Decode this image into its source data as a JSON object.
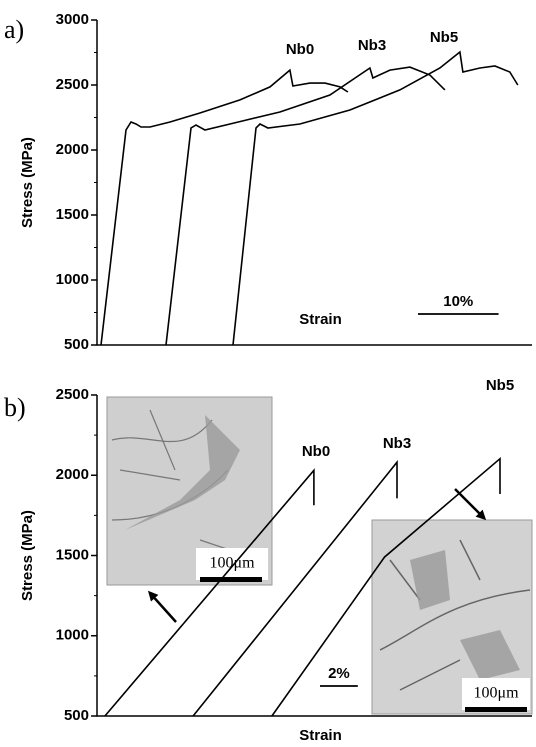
{
  "chart_data": [
    {
      "type": "line",
      "panel_label": "a)",
      "xlabel": "Strain",
      "ylabel": "Stress (MPa)",
      "xlim": [
        0,
        54
      ],
      "ylim": [
        500,
        3000
      ],
      "yticks": [
        500,
        1000,
        1500,
        2000,
        2500,
        3000
      ],
      "scale_bar": {
        "value": 10,
        "label": "10%"
      },
      "series": [
        {
          "name": "Nb0",
          "color": "#000000",
          "x": [
            0.5,
            3.6,
            4.22,
            4.84,
            5.46,
            6.58,
            9.06,
            12.78,
            17.75,
            21.47,
            23.95,
            24.32,
            26.43,
            28.3,
            30.16,
            31.15
          ],
          "values": [
            500,
            2154,
            2215,
            2200,
            2177,
            2177,
            2215,
            2285,
            2385,
            2485,
            2615,
            2492,
            2515,
            2515,
            2485,
            2446
          ]
        },
        {
          "name": "Nb3",
          "color": "#000000",
          "x": [
            8.56,
            11.67,
            12.29,
            13.4,
            16.51,
            22.71,
            28.91,
            33.88,
            34.25,
            36.36,
            38.84,
            41.32,
            43.19
          ],
          "values": [
            500,
            2169,
            2192,
            2154,
            2200,
            2292,
            2423,
            2631,
            2554,
            2615,
            2638,
            2577,
            2462
          ]
        },
        {
          "name": "Nb5",
          "color": "#000000",
          "x": [
            16.88,
            19.74,
            20.23,
            21.22,
            25.19,
            31.4,
            37.6,
            42.57,
            45.05,
            45.42,
            47.53,
            49.39,
            51.25,
            52.24
          ],
          "values": [
            500,
            2169,
            2200,
            2169,
            2200,
            2308,
            2462,
            2631,
            2754,
            2600,
            2631,
            2646,
            2600,
            2500
          ]
        }
      ]
    },
    {
      "type": "line",
      "panel_label": "b)",
      "xlabel": "Strain",
      "ylabel": "Stress (MPa)",
      "xlim": [
        0,
        23
      ],
      "ylim": [
        500,
        2500
      ],
      "yticks": [
        500,
        1000,
        1500,
        2000,
        2500
      ],
      "scale_bar": {
        "value": 2,
        "label": "2%"
      },
      "insets": [
        {
          "scale_label": "100μm"
        },
        {
          "scale_label": "100μm"
        }
      ],
      "series": [
        {
          "name": "Nb0",
          "color": "#000000",
          "x": [
            0.42,
            11.47,
            11.47
          ],
          "values": [
            500,
            2031,
            1813
          ]
        },
        {
          "name": "Nb3",
          "color": "#000000",
          "x": [
            5.08,
            15.86,
            15.86
          ],
          "values": [
            500,
            2081,
            1856
          ]
        },
        {
          "name": "Nb5",
          "color": "#000000",
          "x": [
            9.25,
            15.2,
            21.31,
            21.31
          ],
          "values": [
            500,
            1490,
            2103,
            1883
          ]
        }
      ]
    }
  ]
}
